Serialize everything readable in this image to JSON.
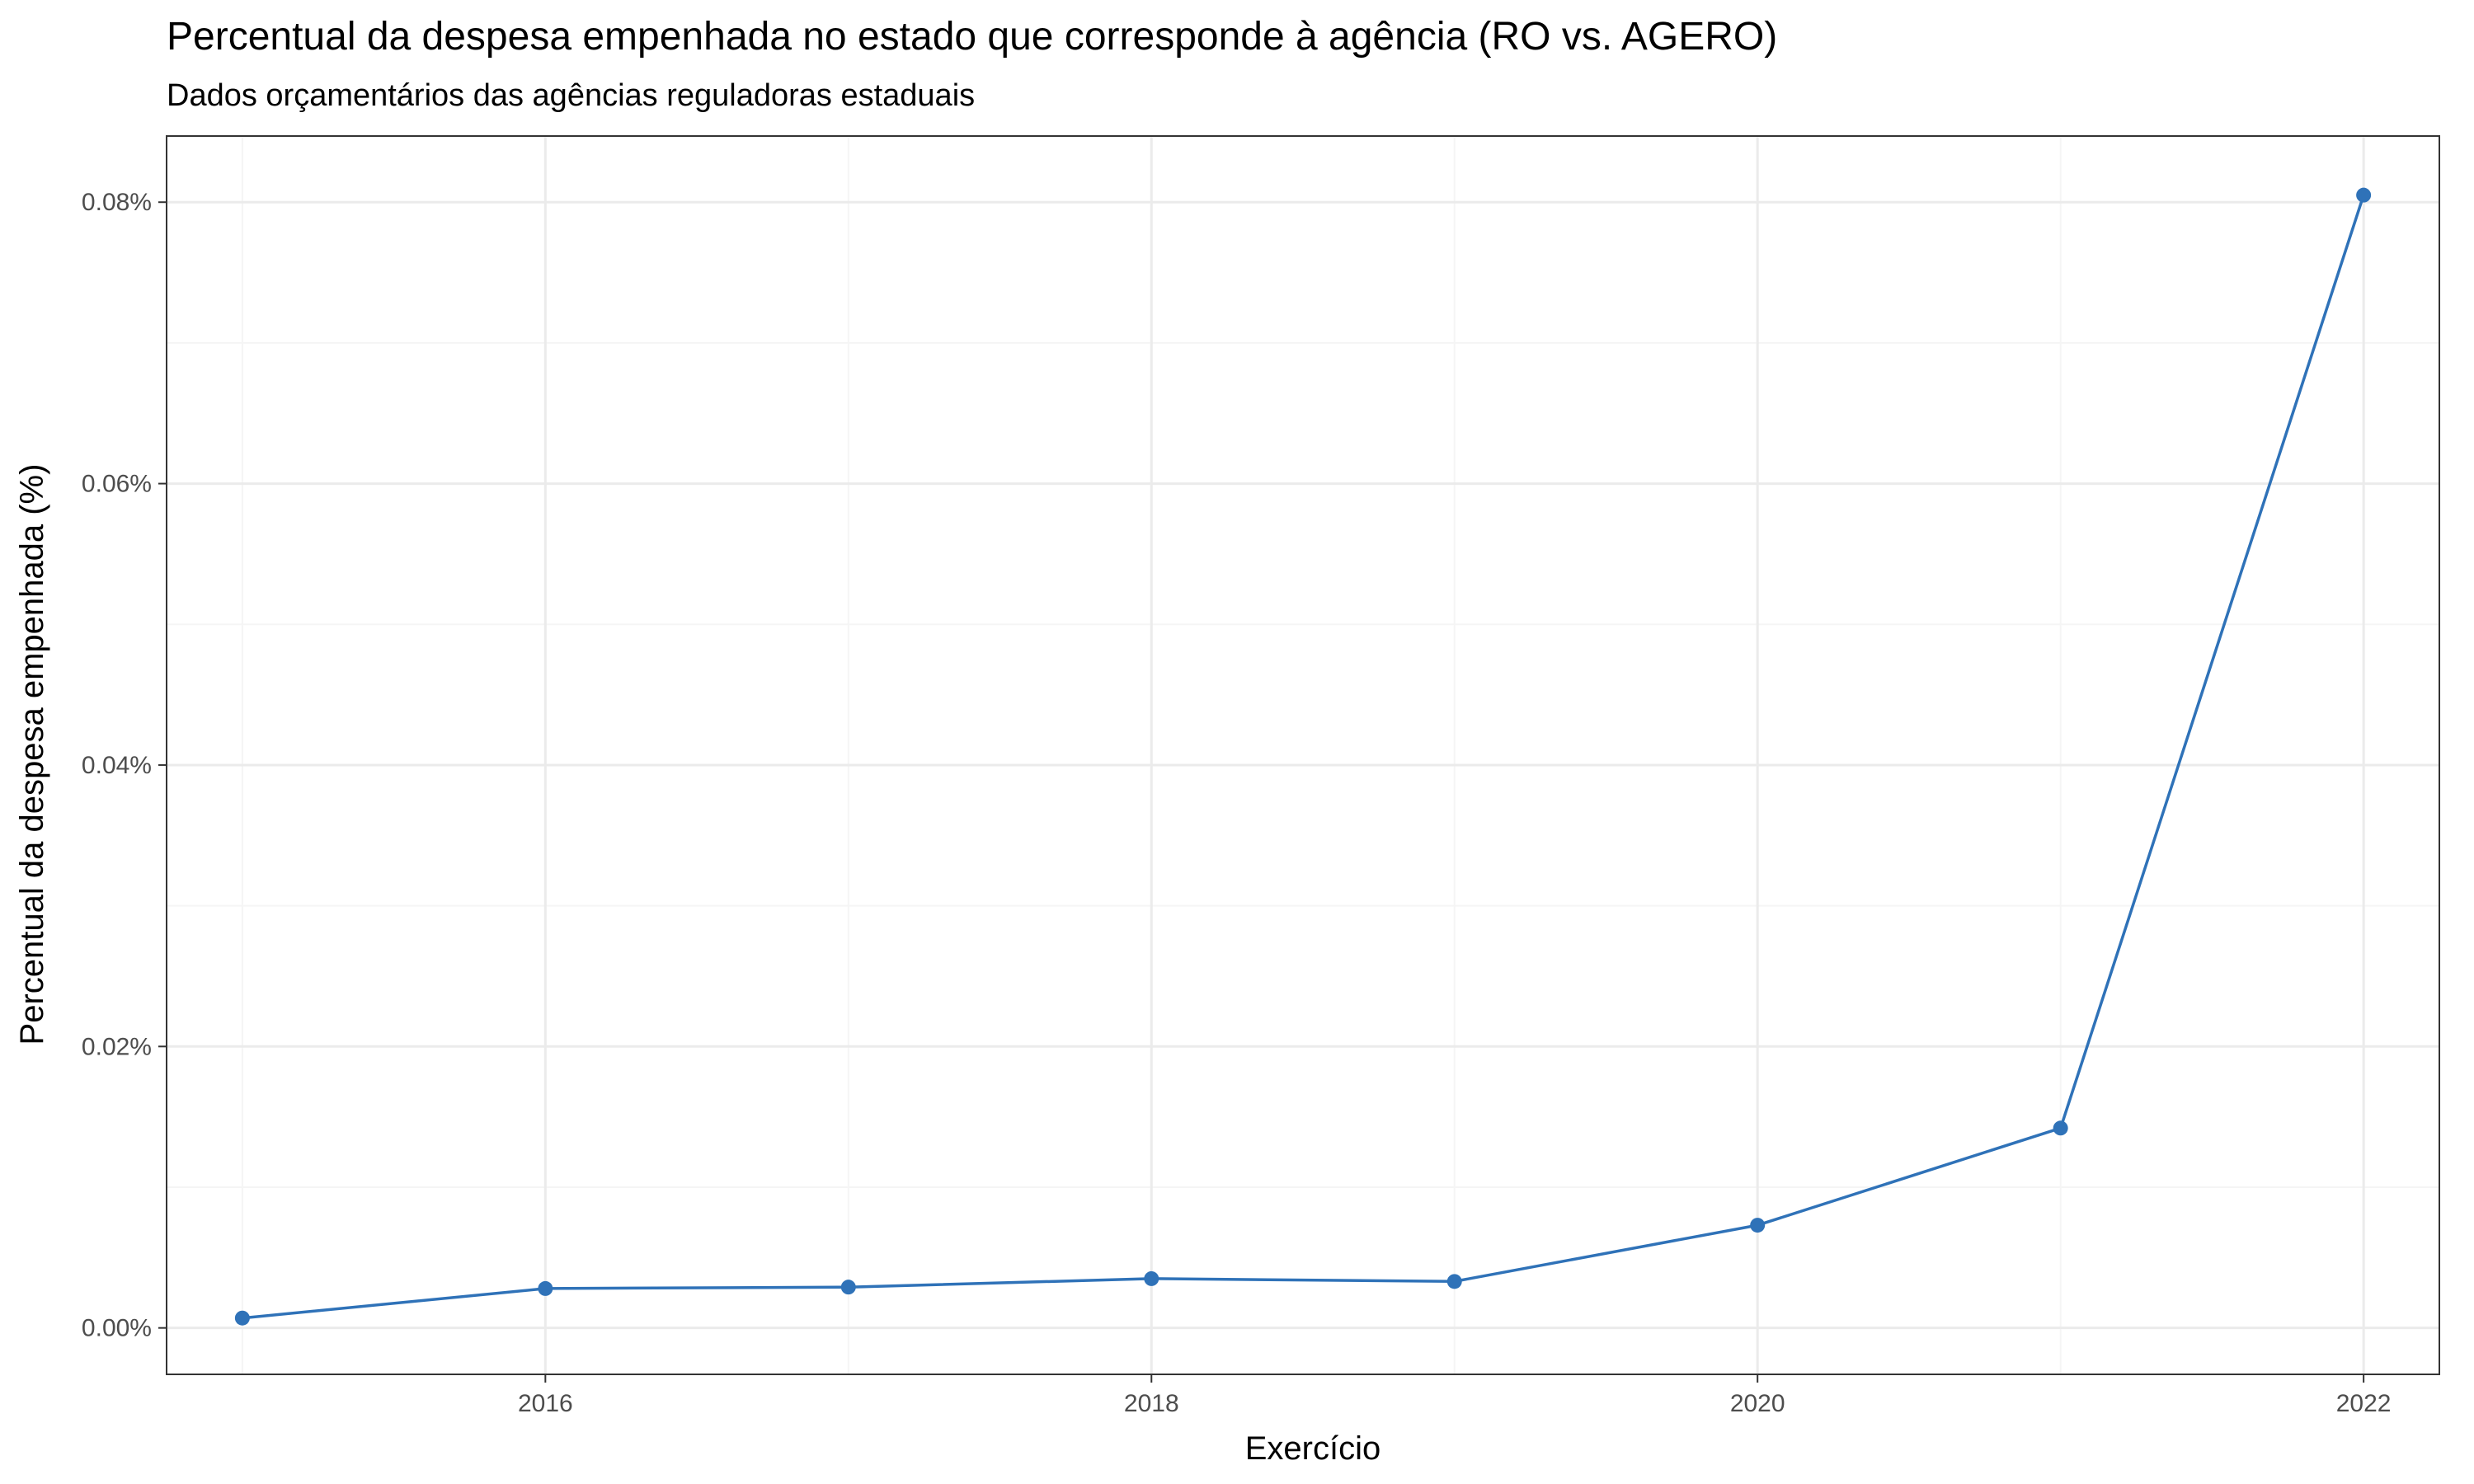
{
  "chart_data": {
    "type": "line",
    "title": "Percentual da despesa empenhada no estado que corresponde à agência (RO vs. AGERO)",
    "subtitle": "Dados orçamentários das agências reguladoras estaduais",
    "xlabel": "Exercício",
    "ylabel": "Percentual da despesa empenhada (%)",
    "x": [
      2015,
      2016,
      2017,
      2018,
      2019,
      2020,
      2021,
      2022
    ],
    "series": [
      {
        "values": [
          0.0007,
          0.0028,
          0.0029,
          0.0035,
          0.0033,
          0.0073,
          0.0142,
          0.0805
        ],
        "color": "#2f72b8"
      }
    ],
    "xlim": [
      2014.75,
      2022.25
    ],
    "ylim": [
      -0.0033,
      0.0847
    ],
    "xticks": [
      2016,
      2018,
      2020,
      2022
    ],
    "xtick_labels": [
      "2016",
      "2018",
      "2020",
      "2022"
    ],
    "yticks": [
      0,
      0.02,
      0.04,
      0.06,
      0.08
    ],
    "ytick_labels": [
      "0.00%",
      "0.02%",
      "0.04%",
      "0.06%",
      "0.08%"
    ],
    "grid": true,
    "legend": "none",
    "colors": {
      "panel_border": "#333333",
      "grid_major": "#ebebeb",
      "grid_minor": "#f5f5f5",
      "line": "#2f72b8"
    }
  }
}
